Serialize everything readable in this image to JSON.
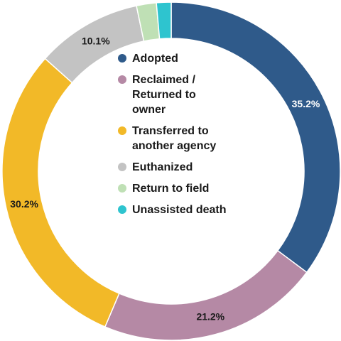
{
  "chart_data": {
    "type": "pie",
    "donut": true,
    "slices": [
      {
        "label": "Adopted",
        "value": 35.2,
        "value_label": "35.2%",
        "color": "#2f5a8a",
        "label_color": "#ffffff"
      },
      {
        "label": "Reclaimed / Returned to owner",
        "value": 21.2,
        "value_label": "21.2%",
        "color": "#b589a5",
        "label_color": "#1a1a1a"
      },
      {
        "label": "Transferred to another agency",
        "value": 30.2,
        "value_label": "30.2%",
        "color": "#f2b928",
        "label_color": "#1a1a1a"
      },
      {
        "label": "Euthanized",
        "value": 10.1,
        "value_label": "10.1%",
        "color": "#c3c3c3",
        "label_color": "#1a1a1a"
      },
      {
        "label": "Return to field",
        "value": 1.9,
        "value_label": "",
        "color": "#bfe0b5",
        "label_color": "#1a1a1a"
      },
      {
        "label": "Unassisted death",
        "value": 1.4,
        "value_label": "",
        "color": "#2ec4cf",
        "label_color": "#1a1a1a"
      }
    ],
    "legend": {
      "placement": "center",
      "items": [
        {
          "lines": [
            "Adopted"
          ],
          "color": "#2f5a8a"
        },
        {
          "lines": [
            "Reclaimed /",
            "Returned to",
            "owner"
          ],
          "color": "#b589a5"
        },
        {
          "lines": [
            "Transferred to",
            "another agency"
          ],
          "color": "#f2b928"
        },
        {
          "lines": [
            "Euthanized"
          ],
          "color": "#c3c3c3"
        },
        {
          "lines": [
            "Return to field"
          ],
          "color": "#bfe0b5"
        },
        {
          "lines": [
            "Unassisted death"
          ],
          "color": "#2ec4cf"
        }
      ]
    }
  }
}
